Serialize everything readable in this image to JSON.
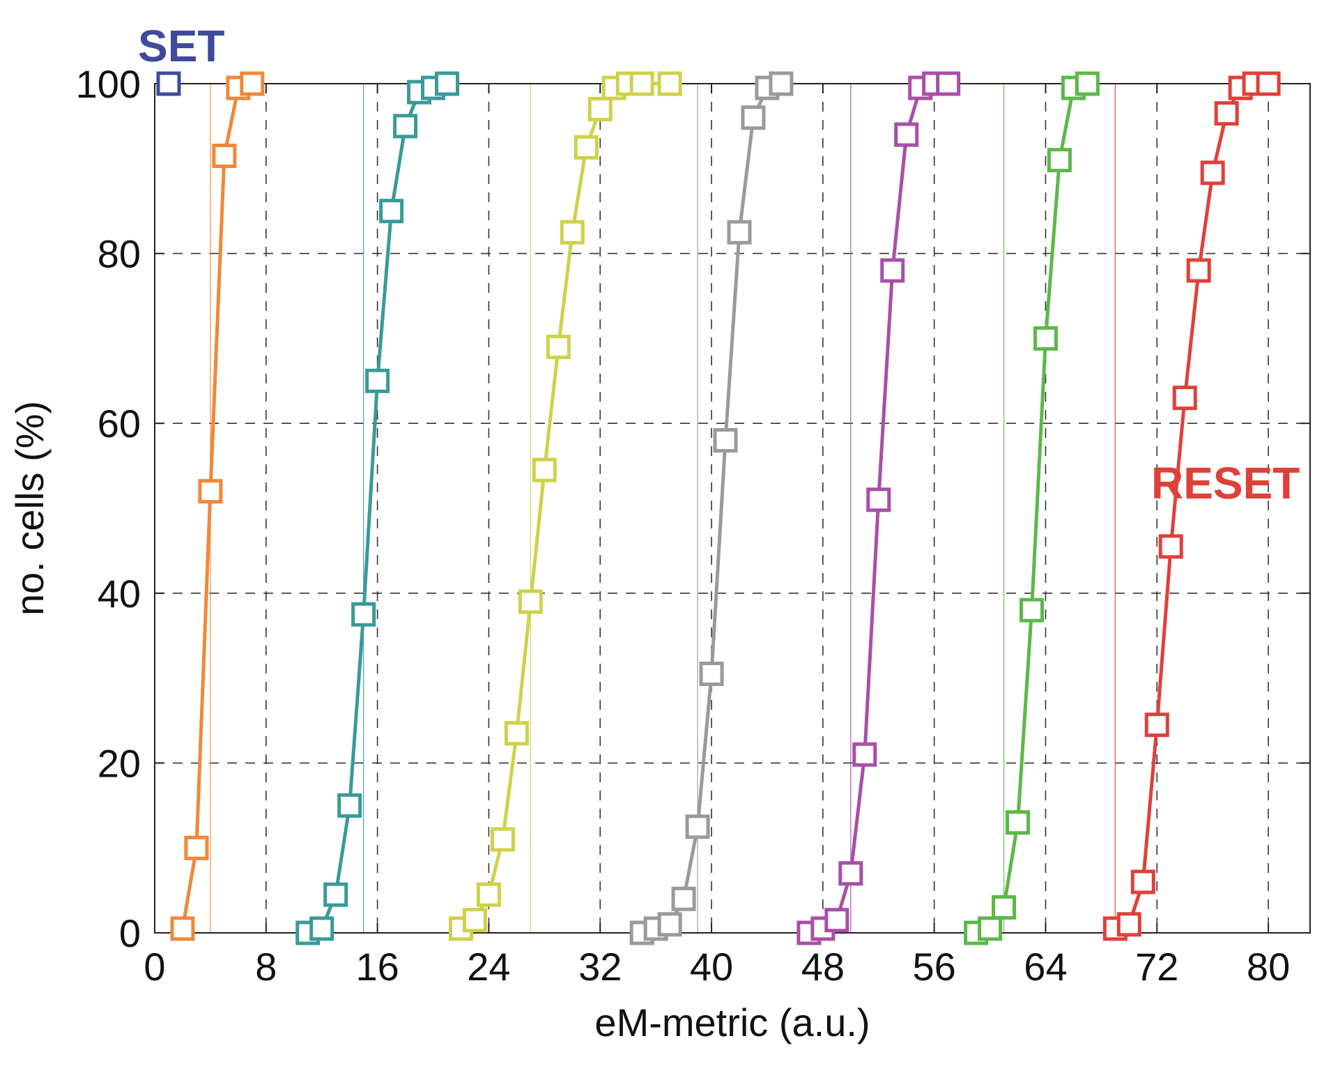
{
  "chart_data": {
    "type": "line",
    "title": "",
    "xlabel": "eM-metric (a.u.)",
    "ylabel": "no. cells (%)",
    "xlim": [
      0,
      83
    ],
    "ylim": [
      0,
      100
    ],
    "xticks": [
      0,
      8,
      16,
      24,
      32,
      40,
      48,
      56,
      64,
      72,
      80
    ],
    "yticks": [
      0,
      20,
      40,
      60,
      80,
      100
    ],
    "grid": "dashed",
    "annotations": [
      {
        "text": "SET",
        "color": "#3f4a9e"
      },
      {
        "text": "RESET",
        "color": "#e0403a"
      }
    ],
    "set_marker": {
      "x": 1,
      "y": 100,
      "color": "#3f4a9e"
    },
    "series": [
      {
        "color": "#f0883a",
        "threshold": 4,
        "x": [
          2,
          3,
          4,
          5,
          6,
          7
        ],
        "y": [
          0.5,
          10,
          52,
          91.5,
          99.5,
          100
        ]
      },
      {
        "color": "#3a9a9a",
        "threshold": 15,
        "x": [
          11,
          12,
          13,
          14,
          15,
          16,
          17,
          18,
          19,
          20,
          21
        ],
        "y": [
          0,
          0.5,
          4.5,
          15,
          37.5,
          65,
          85,
          95,
          99,
          99.5,
          100
        ]
      },
      {
        "color": "#cfd24a",
        "threshold": 27,
        "x": [
          22,
          23,
          24,
          25,
          26,
          27,
          28,
          29,
          30,
          31,
          32,
          33,
          34,
          35,
          37
        ],
        "y": [
          0.5,
          1.5,
          4.5,
          11,
          23.5,
          39,
          54.5,
          69,
          82.5,
          92.5,
          97,
          99.5,
          100,
          100,
          100
        ]
      },
      {
        "color": "#9a9a9a",
        "threshold": 39,
        "x": [
          35,
          36,
          37,
          38,
          39,
          40,
          41,
          42,
          43,
          44,
          45
        ],
        "y": [
          0,
          0.5,
          1,
          4,
          12.5,
          30.5,
          58,
          82.5,
          96,
          99.5,
          100
        ]
      },
      {
        "color": "#a84fa8",
        "threshold": 50,
        "x": [
          47,
          48,
          49,
          50,
          51,
          52,
          53,
          54,
          55,
          56,
          57
        ],
        "y": [
          0,
          0.5,
          1.5,
          7,
          21,
          51,
          78,
          94,
          99.5,
          100,
          100
        ]
      },
      {
        "color": "#5db84a",
        "threshold": 61,
        "x": [
          59,
          60,
          61,
          62,
          63,
          64,
          65,
          66,
          67
        ],
        "y": [
          0,
          0.5,
          3,
          13,
          38,
          70,
          91,
          99.5,
          100
        ]
      },
      {
        "color": "#e0403a",
        "threshold": 69,
        "x": [
          69,
          70,
          71,
          72,
          73,
          74,
          75,
          76,
          77,
          78,
          79,
          80
        ],
        "y": [
          0.5,
          1,
          6,
          24.5,
          45.5,
          63,
          78,
          89.5,
          96.5,
          99.5,
          100,
          100
        ]
      }
    ]
  }
}
